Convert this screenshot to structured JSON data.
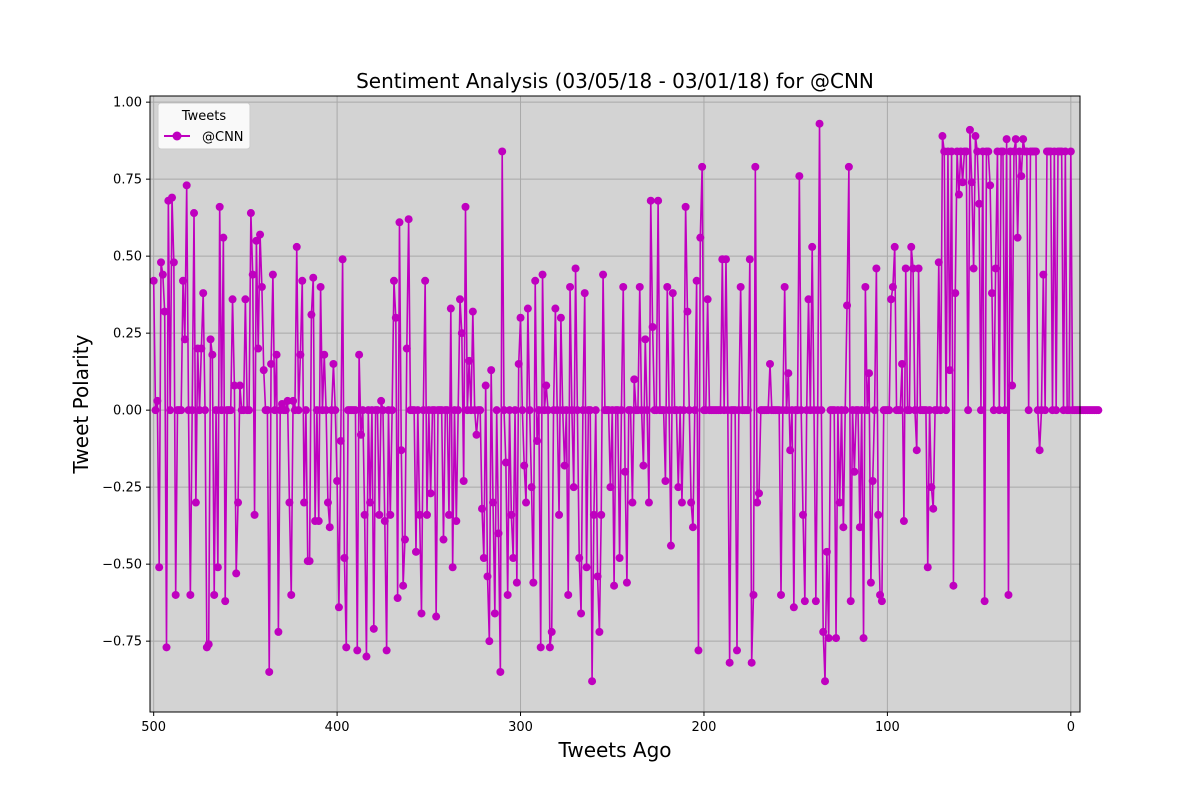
{
  "chart_data": {
    "type": "line",
    "title": "Sentiment Analysis (03/05/18 - 03/01/18) for @CNN",
    "xlabel": "Tweets Ago",
    "ylabel": "Tweet Polarity",
    "xlim": [
      502,
      -5
    ],
    "ylim": [
      -0.98,
      1.02
    ],
    "x_ticks": [
      500,
      400,
      300,
      200,
      100,
      0
    ],
    "y_ticks": [
      -0.75,
      -0.5,
      -0.25,
      0.0,
      0.25,
      0.5,
      0.75,
      1.0
    ],
    "y_tick_labels": [
      "−0.75",
      "−0.50",
      "−0.25",
      "0.00",
      "0.25",
      "0.50",
      "0.75",
      "1.00"
    ],
    "grid": true,
    "legend": {
      "title": "Tweets",
      "position": "top-left"
    },
    "colors": {
      "line": "#bf00bf",
      "plot_background": "#d3d3d3",
      "grid": "#a9a9a9"
    },
    "series": [
      {
        "name": "@CNN",
        "x_start": 500,
        "x_step": -1,
        "values": [
          0.42,
          0.0,
          0.03,
          -0.51,
          0.48,
          0.44,
          0.32,
          -0.77,
          0.68,
          0.0,
          0.69,
          0.48,
          -0.6,
          0.0,
          0.0,
          0.0,
          0.42,
          0.23,
          0.73,
          0.0,
          -0.6,
          0.0,
          0.64,
          -0.3,
          0.2,
          0.0,
          0.2,
          0.38,
          0.0,
          -0.77,
          -0.76,
          0.23,
          0.18,
          -0.6,
          0.0,
          -0.51,
          0.66,
          0.0,
          0.56,
          -0.62,
          0.0,
          0.0,
          0.0,
          0.36,
          0.08,
          -0.53,
          -0.3,
          0.08,
          0.0,
          0.0,
          0.36,
          0.0,
          0.0,
          0.64,
          0.44,
          -0.34,
          0.55,
          0.2,
          0.57,
          0.4,
          0.13,
          0.0,
          0.0,
          -0.85,
          0.15,
          0.44,
          0.0,
          0.18,
          -0.72,
          0.0,
          0.02,
          0.0,
          0.0,
          0.03,
          -0.3,
          -0.6,
          0.03,
          0.0,
          0.53,
          0.0,
          0.18,
          0.42,
          -0.3,
          0.0,
          -0.49,
          -0.49,
          0.31,
          0.43,
          -0.36,
          0.0,
          -0.36,
          0.4,
          0.0,
          0.18,
          0.0,
          -0.3,
          -0.38,
          0.0,
          0.15,
          0.0,
          -0.23,
          -0.64,
          -0.1,
          0.49,
          -0.48,
          -0.77,
          0.0,
          0.0,
          0.0,
          0.0,
          0.0,
          -0.78,
          0.18,
          -0.08,
          0.0,
          -0.34,
          -0.8,
          0.0,
          -0.3,
          0.0,
          -0.71,
          0.0,
          0.0,
          -0.34,
          0.03,
          0.0,
          -0.36,
          -0.78,
          0.0,
          -0.34,
          0.0,
          0.42,
          0.3,
          -0.61,
          0.61,
          -0.13,
          -0.57,
          -0.42,
          0.2,
          0.62,
          0.0,
          0.0,
          0.0,
          -0.46,
          0.0,
          -0.34,
          -0.66,
          0.0,
          0.42,
          -0.34,
          0.0,
          -0.27,
          0.0,
          0.0,
          -0.67,
          0.0,
          0.0,
          0.0,
          -0.42,
          0.0,
          0.0,
          -0.34,
          0.33,
          -0.51,
          0.0,
          -0.36,
          0.0,
          0.36,
          0.25,
          -0.23,
          0.66,
          0.0,
          0.16,
          0.0,
          0.32,
          0.0,
          -0.08,
          0.0,
          0.0,
          -0.32,
          -0.48,
          0.08,
          -0.54,
          -0.75,
          0.13,
          -0.3,
          -0.66,
          0.0,
          -0.4,
          -0.85,
          0.84,
          0.0,
          -0.17,
          -0.6,
          0.0,
          -0.34,
          -0.48,
          0.0,
          -0.56,
          0.15,
          0.3,
          0.0,
          -0.18,
          -0.3,
          0.33,
          0.0,
          -0.25,
          -0.56,
          0.42,
          -0.1,
          0.0,
          -0.77,
          0.44,
          0.0,
          0.08,
          0.0,
          -0.77,
          -0.72,
          0.0,
          0.33,
          0.0,
          -0.34,
          0.3,
          0.0,
          -0.18,
          0.0,
          -0.6,
          0.4,
          0.0,
          -0.25,
          0.46,
          0.0,
          -0.48,
          -0.66,
          0.0,
          0.38,
          -0.51,
          0.0,
          0.0,
          -0.88,
          -0.34,
          0.0,
          -0.54,
          -0.72,
          -0.34,
          0.44,
          0.0,
          0.0,
          0.0,
          -0.25,
          0.0,
          -0.57,
          0.0,
          0.0,
          -0.48,
          0.0,
          0.4,
          -0.2,
          -0.56,
          0.0,
          0.0,
          -0.3,
          0.1,
          0.0,
          0.0,
          0.4,
          0.0,
          -0.18,
          0.23,
          0.0,
          -0.3,
          0.68,
          0.27,
          0.0,
          0.0,
          0.68,
          0.0,
          0.0,
          0.0,
          -0.23,
          0.4,
          0.0,
          -0.44,
          0.38,
          0.0,
          0.0,
          -0.25,
          0.0,
          -0.3,
          0.0,
          0.66,
          0.32,
          0.0,
          -0.3,
          -0.38,
          0.0,
          0.42,
          -0.78,
          0.56,
          0.79,
          0.0,
          0.0,
          0.36,
          0.0,
          0.0,
          0.0,
          0.0,
          0.0,
          0.0,
          0.0,
          0.49,
          0.0,
          0.49,
          0.0,
          -0.82,
          0.0,
          0.0,
          0.0,
          -0.78,
          0.0,
          0.4,
          0.0,
          0.0,
          0.0,
          0.0,
          0.49,
          -0.82,
          -0.6,
          0.79,
          -0.3,
          -0.27,
          0.0,
          0.0,
          0.0,
          0.0,
          0.0,
          0.15,
          0.0,
          0.0,
          0.0,
          0.0,
          0.0,
          -0.6,
          0.0,
          0.4,
          0.0,
          0.12,
          -0.13,
          0.0,
          -0.64,
          0.0,
          0.0,
          0.76,
          0.0,
          -0.34,
          -0.62,
          0.0,
          0.36,
          0.0,
          0.53,
          0.0,
          -0.62,
          0.0,
          0.93,
          0.0,
          -0.72,
          -0.88,
          -0.46,
          -0.74,
          0.0,
          0.0,
          0.0,
          -0.74,
          0.0,
          -0.3,
          0.0,
          -0.38,
          0.0,
          0.34,
          0.79,
          0.08,
          0.0,
          0.4,
          0.0,
          0.4,
          0.4,
          -0.61,
          0.0,
          0.36,
          0.4,
          0.0,
          0.15,
          0.0,
          0.25,
          0.0,
          0.0,
          0.0,
          -0.3,
          0.0,
          0.0,
          -0.58,
          0.0,
          0.0,
          -0.08,
          0.0,
          0.0,
          0.0,
          0.15,
          0.0,
          0.0,
          0.0,
          -0.61,
          0.0,
          0.0,
          -0.62,
          0.0,
          -0.2,
          0.0,
          0.0,
          -0.38,
          0.0,
          0.0,
          0.0,
          0.0,
          0.0,
          0.0,
          0.0,
          0.0,
          0.0,
          0.0,
          0.0,
          0.0,
          0.0,
          0.0,
          0.0,
          0.0,
          0.0,
          0.0,
          0.0,
          0.0,
          0.0,
          0.0,
          0.0,
          0.0,
          0.0,
          0.0,
          0.0,
          0.0,
          0.0,
          0.0,
          0.0,
          0.0,
          0.0,
          0.0,
          0.0,
          0.0,
          0.0,
          0.0,
          0.0,
          0.0,
          0.0,
          0.0,
          0.0,
          0.0,
          0.0,
          0.0,
          0.0,
          0.0,
          0.0,
          0.0,
          0.0,
          0.0,
          0.0,
          0.0,
          0.0,
          0.0,
          0.0,
          0.0,
          0.0,
          0.0,
          0.0,
          0.0,
          0.0,
          0.0,
          0.0,
          0.0,
          0.0,
          0.0,
          0.0,
          0.0,
          0.0,
          0.0,
          0.0,
          0.0,
          0.0,
          0.0,
          0.0,
          0.0,
          0.0,
          0.0,
          0.0,
          0.0,
          0.0,
          0.0,
          0.0,
          0.0,
          0.0,
          0.0,
          0.0,
          0.0,
          0.0,
          0.0,
          0.0,
          0.0,
          0.0,
          0.0
        ]
      }
    ],
    "series_tail_override": {
      "from_x": 120,
      "values": [
        -0.62,
        0.0,
        -0.2,
        0.0,
        0.0,
        -0.38,
        0.0,
        -0.74,
        0.4,
        0.0,
        0.12,
        -0.56,
        -0.23,
        0.0,
        0.46,
        -0.34,
        -0.6,
        -0.62,
        0.0,
        0.0,
        0.0,
        0.0,
        0.36,
        0.4,
        0.53,
        0.0,
        0.0,
        0.0,
        0.15,
        -0.36,
        0.46,
        0.0,
        0.0,
        0.53,
        0.46,
        0.0,
        -0.13,
        0.46,
        0.0,
        0.0,
        0.0,
        0.0,
        -0.51,
        0.0,
        -0.25,
        -0.32,
        0.0,
        0.0,
        0.48,
        0.0,
        0.89,
        0.84,
        0.0,
        0.84,
        0.13,
        0.84,
        -0.57,
        0.38,
        0.84,
        0.7,
        0.84,
        0.74,
        0.84,
        0.84,
        0.0,
        0.91,
        0.74,
        0.46,
        0.89,
        0.84,
        0.67,
        0.0,
        0.84,
        -0.62,
        0.84,
        0.84,
        0.73,
        0.38,
        0.0,
        0.46,
        0.84,
        0.0,
        0.84,
        0.84,
        0.0,
        0.88,
        -0.6,
        0.84,
        0.08,
        0.84,
        0.88,
        0.56,
        0.84,
        0.76,
        0.88,
        0.84,
        0.84,
        0.0,
        0.84,
        0.84,
        0.84,
        0.84,
        0.0,
        -0.13,
        0.0,
        0.44,
        0.0,
        0.84,
        0.84,
        0.84,
        0.0,
        0.84,
        0.0,
        0.84,
        0.84,
        0.84,
        0.0,
        0.84,
        0.0,
        0.0,
        0.84,
        0.0,
        0.0,
        0.0
      ]
    }
  }
}
